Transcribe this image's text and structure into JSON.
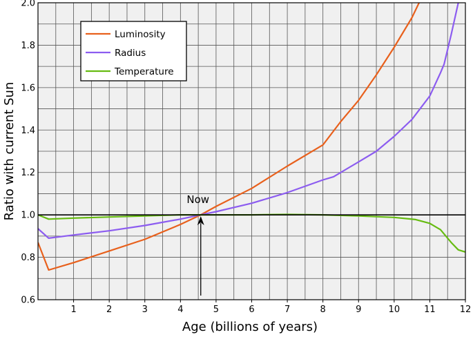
{
  "chart_data": {
    "type": "line",
    "xlabel": "Age (billions of years)",
    "ylabel": "Ratio with current Sun",
    "xlim": [
      0,
      12
    ],
    "ylim": [
      0.6,
      2.0
    ],
    "x_ticks": [
      "1",
      "2",
      "3",
      "4",
      "5",
      "6",
      "7",
      "8",
      "9",
      "10",
      "11",
      "12"
    ],
    "y_ticks": [
      "0.6",
      "0.8",
      "1.0",
      "1.2",
      "1.4",
      "1.6",
      "1.8",
      "2.0"
    ],
    "grid": true,
    "background": "#f0f0f0",
    "legend": "top-left",
    "reference_line": 1.0,
    "annotation": {
      "text": "Now",
      "x": 4.57,
      "y": 1.0
    },
    "series": [
      {
        "name": "Luminosity",
        "color": "#e8601c",
        "points": [
          [
            0,
            0.87
          ],
          [
            0.3,
            0.74
          ],
          [
            1,
            0.775
          ],
          [
            2,
            0.83
          ],
          [
            3,
            0.885
          ],
          [
            4,
            0.955
          ],
          [
            4.57,
            1.0
          ],
          [
            5,
            1.04
          ],
          [
            6,
            1.125
          ],
          [
            7,
            1.23
          ],
          [
            8,
            1.33
          ],
          [
            8.5,
            1.44
          ],
          [
            9,
            1.54
          ],
          [
            9.5,
            1.66
          ],
          [
            10,
            1.79
          ],
          [
            10.5,
            1.93
          ],
          [
            10.7,
            2.0
          ]
        ]
      },
      {
        "name": "Radius",
        "color": "#8c5cf0",
        "points": [
          [
            0,
            0.935
          ],
          [
            0.3,
            0.89
          ],
          [
            1,
            0.905
          ],
          [
            2,
            0.925
          ],
          [
            3,
            0.95
          ],
          [
            4,
            0.98
          ],
          [
            4.57,
            1.0
          ],
          [
            5,
            1.015
          ],
          [
            6,
            1.055
          ],
          [
            7,
            1.105
          ],
          [
            8,
            1.165
          ],
          [
            8.3,
            1.18
          ],
          [
            9,
            1.25
          ],
          [
            9.5,
            1.3
          ],
          [
            10,
            1.37
          ],
          [
            10.5,
            1.45
          ],
          [
            11,
            1.56
          ],
          [
            11.3,
            1.67
          ],
          [
            11.4,
            1.71
          ],
          [
            11.6,
            1.85
          ],
          [
            11.8,
            2.0
          ]
        ]
      },
      {
        "name": "Temperature",
        "color": "#66bb11",
        "points": [
          [
            0,
            1.0
          ],
          [
            0.3,
            0.98
          ],
          [
            1,
            0.985
          ],
          [
            2,
            0.99
          ],
          [
            3,
            0.995
          ],
          [
            4,
            1.0
          ],
          [
            5,
            1.0
          ],
          [
            6,
            1.0
          ],
          [
            7,
            1.002
          ],
          [
            8,
            1.0
          ],
          [
            9,
            0.995
          ],
          [
            10,
            0.988
          ],
          [
            10.6,
            0.978
          ],
          [
            11,
            0.96
          ],
          [
            11.3,
            0.93
          ],
          [
            11.6,
            0.87
          ],
          [
            11.8,
            0.835
          ],
          [
            12,
            0.825
          ]
        ]
      }
    ]
  }
}
